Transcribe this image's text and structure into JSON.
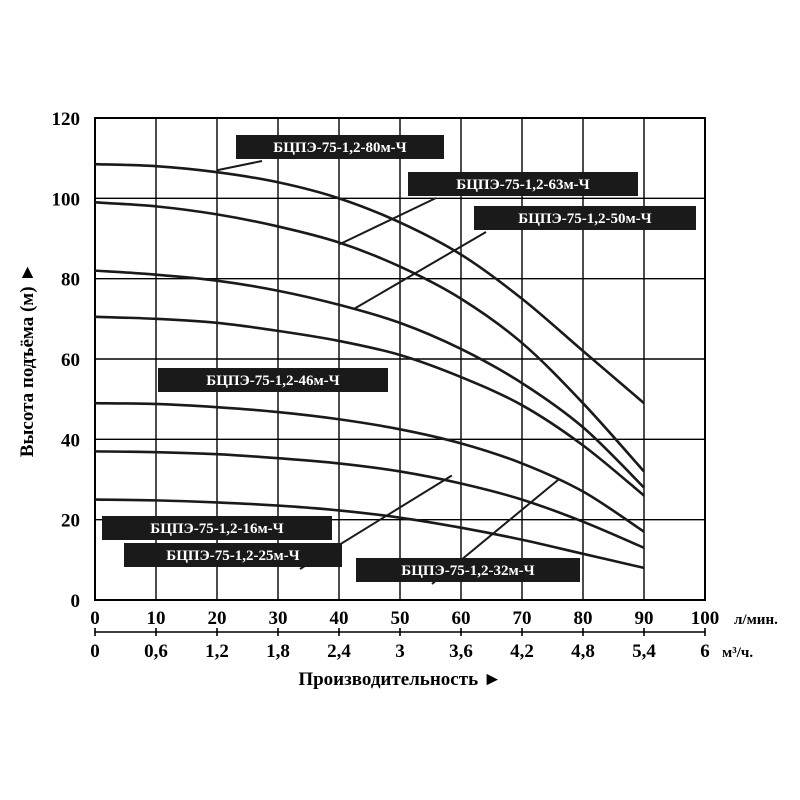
{
  "chart_data": {
    "type": "line",
    "title": "",
    "xlabel": "Производительность ►",
    "ylabel": "Высота подъёма (м) ►",
    "xlim": [
      0,
      100
    ],
    "ylim": [
      0,
      120
    ],
    "grid": true,
    "x_ticks": [
      "0",
      "10",
      "20",
      "30",
      "40",
      "50",
      "60",
      "70",
      "80",
      "90",
      "100"
    ],
    "x_unit": "л/мин.",
    "x2_ticks": [
      "0",
      "0,6",
      "1,2",
      "1,8",
      "2,4",
      "3",
      "3,6",
      "4,2",
      "4,8",
      "5,4",
      "6"
    ],
    "x2_unit": "м³/ч.",
    "y_ticks": [
      "0",
      "20",
      "40",
      "60",
      "80",
      "100",
      "120"
    ],
    "series": [
      {
        "name": "БЦПЭ-75-1,2-80м-Ч",
        "x": [
          0,
          10,
          20,
          30,
          40,
          50,
          60,
          70,
          80,
          90
        ],
        "y": [
          108.5,
          108,
          106.5,
          104,
          100,
          94,
          86,
          75,
          62,
          49
        ]
      },
      {
        "name": "БЦПЭ-75-1,2-63м-Ч",
        "x": [
          0,
          10,
          20,
          30,
          40,
          50,
          60,
          70,
          80,
          90
        ],
        "y": [
          99,
          98,
          96,
          93,
          89,
          83,
          75,
          64,
          49,
          32
        ]
      },
      {
        "name": "БЦПЭ-75-1,2-50м-Ч",
        "x": [
          0,
          10,
          20,
          30,
          40,
          50,
          60,
          70,
          80,
          90
        ],
        "y": [
          82,
          81,
          79.5,
          77,
          73.5,
          69,
          62.5,
          54,
          43,
          28
        ]
      },
      {
        "name": "БЦПЭ-75-1,2-46м-Ч",
        "x": [
          0,
          10,
          20,
          30,
          40,
          50,
          60,
          70,
          80,
          90
        ],
        "y": [
          70.5,
          70,
          69,
          67,
          64.5,
          61,
          55.5,
          48.5,
          38.5,
          26
        ]
      },
      {
        "name": "БЦПЭ-75-1,2-32м-Ч",
        "x": [
          0,
          10,
          20,
          30,
          40,
          50,
          60,
          70,
          80,
          90
        ],
        "y": [
          49,
          48.8,
          48,
          46.8,
          45,
          42.5,
          39,
          34,
          27,
          17
        ]
      },
      {
        "name": "БЦПЭ-75-1,2-25м-Ч",
        "x": [
          0,
          10,
          20,
          30,
          40,
          50,
          60,
          70,
          80,
          90
        ],
        "y": [
          37,
          36.8,
          36.3,
          35.3,
          34,
          32,
          29,
          25,
          19.5,
          13
        ]
      },
      {
        "name": "БЦПЭ-75-1,2-16м-Ч",
        "x": [
          0,
          10,
          20,
          30,
          40,
          50,
          60,
          70,
          80,
          90
        ],
        "y": [
          25,
          24.8,
          24.3,
          23.5,
          22.3,
          20.5,
          18,
          15,
          11.5,
          8
        ]
      }
    ],
    "callouts": [
      {
        "label": "БЦПЭ-75-1,2-80м-Ч",
        "anchor": [
          20,
          107
        ]
      },
      {
        "label": "БЦПЭ-75-1,2-63м-Ч",
        "anchor": [
          40,
          88.5
        ]
      },
      {
        "label": "БЦПЭ-75-1,2-50м-Ч",
        "anchor": [
          42.5,
          72.5
        ]
      },
      {
        "label": "БЦПЭ-75-1,2-46м-Ч",
        "anchor": [],
        "leader": false
      },
      {
        "label": "БЦПЭ-75-1,2-16м-Ч",
        "anchor": [],
        "leader": false
      },
      {
        "label": "БЦПЭ-75-1,2-25м-Ч",
        "anchor": [
          58.5,
          31
        ]
      },
      {
        "label": "БЦПЭ-75-1,2-32м-Ч",
        "anchor": [
          76,
          30
        ]
      }
    ],
    "colors": {
      "line": "#1a1a1a",
      "grid": "#000000",
      "label_bg": "#1a1a1a",
      "label_text": "#ffffff"
    }
  }
}
